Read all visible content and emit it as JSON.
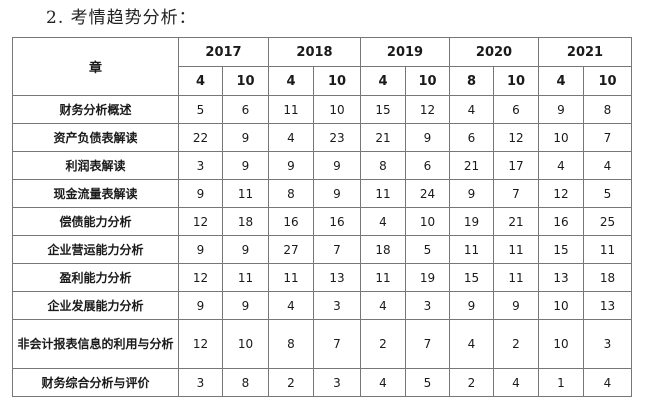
{
  "heading": "2. 考情趋势分析：",
  "table": {
    "chapter_header": "章",
    "years": [
      "2017",
      "2018",
      "2019",
      "2020",
      "2021"
    ],
    "months": [
      "4",
      "10",
      "4",
      "10",
      "4",
      "10",
      "8",
      "10",
      "4",
      "10"
    ],
    "rows": [
      {
        "chapter": "财务分析概述",
        "values": [
          "5",
          "6",
          "11",
          "10",
          "15",
          "12",
          "4",
          "6",
          "9",
          "8"
        ]
      },
      {
        "chapter": "资产负债表解读",
        "values": [
          "22",
          "9",
          "4",
          "23",
          "21",
          "9",
          "6",
          "12",
          "10",
          "7"
        ]
      },
      {
        "chapter": "利润表解读",
        "values": [
          "3",
          "9",
          "9",
          "9",
          "8",
          "6",
          "21",
          "17",
          "4",
          "4"
        ]
      },
      {
        "chapter": "现金流量表解读",
        "values": [
          "9",
          "11",
          "8",
          "9",
          "11",
          "24",
          "9",
          "7",
          "12",
          "5"
        ]
      },
      {
        "chapter": "偿债能力分析",
        "values": [
          "12",
          "18",
          "16",
          "16",
          "4",
          "10",
          "19",
          "21",
          "16",
          "25"
        ]
      },
      {
        "chapter": "企业营运能力分析",
        "values": [
          "9",
          "9",
          "27",
          "7",
          "18",
          "5",
          "11",
          "11",
          "15",
          "11"
        ]
      },
      {
        "chapter": "盈利能力分析",
        "values": [
          "12",
          "11",
          "11",
          "13",
          "11",
          "19",
          "15",
          "11",
          "13",
          "18"
        ]
      },
      {
        "chapter": "企业发展能力分析",
        "values": [
          "9",
          "9",
          "4",
          "3",
          "4",
          "3",
          "9",
          "9",
          "10",
          "13"
        ]
      },
      {
        "chapter": "非会计报表信息的利用与分析",
        "values": [
          "12",
          "10",
          "8",
          "7",
          "2",
          "7",
          "4",
          "2",
          "10",
          "3"
        ]
      },
      {
        "chapter": "财务综合分析与评价",
        "values": [
          "3",
          "8",
          "2",
          "3",
          "4",
          "5",
          "2",
          "4",
          "1",
          "4"
        ]
      }
    ]
  }
}
